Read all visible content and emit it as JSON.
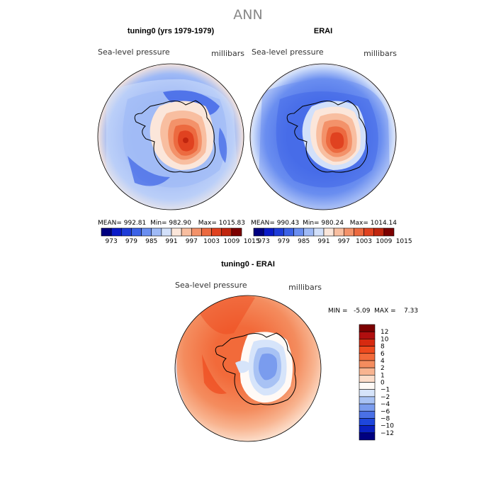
{
  "page_title": "ANN",
  "chart_data": [
    {
      "type": "heatmap",
      "title": "tuning0 (yrs 1979-1979)",
      "left_label": "Sea-level pressure",
      "right_label": "millibars",
      "stats": {
        "mean": "MEAN= 992.81",
        "min": "Min= 982.90",
        "max": "Max= 1015.83"
      },
      "levels": [
        973,
        979,
        985,
        991,
        997,
        1003,
        1009,
        1015
      ],
      "colors": [
        "#000080",
        "#0a1ac8",
        "#1e3cd8",
        "#3c62e6",
        "#6a8ef0",
        "#9fbaf6",
        "#d2e0fa",
        "#fbe6da",
        "#f8bea0",
        "#f3926a",
        "#ec6a40",
        "#e04220",
        "#c0250e",
        "#7c0000"
      ]
    },
    {
      "type": "heatmap",
      "title": "ERAI",
      "left_label": "Sea-level pressure",
      "right_label": "millibars",
      "stats": {
        "mean": "MEAN= 990.43",
        "min": "Min= 980.24",
        "max": "Max= 1014.14"
      },
      "levels": [
        973,
        979,
        985,
        991,
        997,
        1003,
        1009,
        1015
      ],
      "colors": [
        "#000080",
        "#0a1ac8",
        "#1e3cd8",
        "#3c62e6",
        "#6a8ef0",
        "#9fbaf6",
        "#d2e0fa",
        "#fbe6da",
        "#f8bea0",
        "#f3926a",
        "#ec6a40",
        "#e04220",
        "#c0250e",
        "#7c0000"
      ]
    },
    {
      "type": "heatmap",
      "title": "tuning0 - ERAI",
      "left_label": "Sea-level pressure",
      "right_label": "millibars",
      "stats": {
        "minmax": "MIN =   -5.09  MAX =    7.33"
      },
      "levels": [
        "12",
        "10",
        "8",
        "6",
        "4",
        "2",
        "1",
        "0",
        "−1",
        "−2",
        "−4",
        "−6",
        "−8",
        "−10",
        "−12"
      ],
      "colors": [
        "#7c0000",
        "#b00f0f",
        "#d62a10",
        "#ee4a1e",
        "#f26a3a",
        "#f48c5e",
        "#f8b490",
        "#fcdcc8",
        "#fffaf6",
        "#d6e4fa",
        "#a8c2f4",
        "#7a9cee",
        "#4a70e6",
        "#1e46dc",
        "#0a20c0",
        "#000080"
      ]
    }
  ]
}
